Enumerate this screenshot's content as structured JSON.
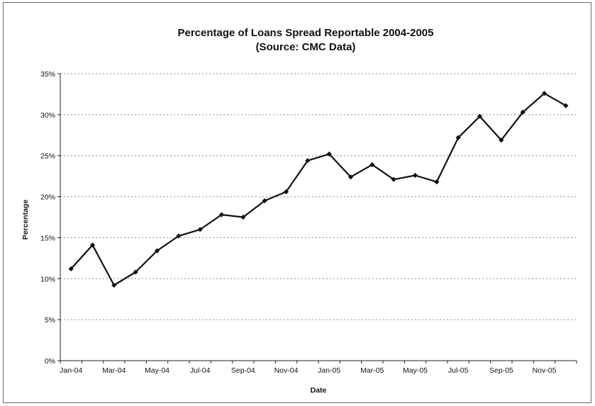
{
  "chart_data": {
    "type": "line",
    "title": "Percentage of Loans Spread Reportable 2004-2005",
    "subtitle": "(Source: CMC Data)",
    "xlabel": "Date",
    "ylabel": "Percentage",
    "x_tick_labels": [
      "Jan-04",
      "Mar-04",
      "May-04",
      "Jul-04",
      "Sep-04",
      "Nov-04",
      "Jan-05",
      "Mar-05",
      "May-05",
      "Jul-05",
      "Sep-05",
      "Nov-05"
    ],
    "y_tick_labels": [
      "0%",
      "5%",
      "10%",
      "15%",
      "20%",
      "25%",
      "30%",
      "35%"
    ],
    "y_ticks": [
      0,
      5,
      10,
      15,
      20,
      25,
      30,
      35
    ],
    "ylim": [
      0,
      35
    ],
    "grid": true,
    "series": [
      {
        "name": "",
        "color": "#111111",
        "x": [
          "Jan-04",
          "Feb-04",
          "Mar-04",
          "Apr-04",
          "May-04",
          "Jun-04",
          "Jul-04",
          "Aug-04",
          "Sep-04",
          "Oct-04",
          "Nov-04",
          "Dec-04",
          "Jan-05",
          "Feb-05",
          "Mar-05",
          "Apr-05",
          "May-05",
          "Jun-05",
          "Jul-05",
          "Aug-05",
          "Sep-05",
          "Oct-05",
          "Nov-05",
          "Dec-05"
        ],
        "values": [
          11.2,
          14.1,
          9.2,
          10.8,
          13.4,
          15.2,
          16.0,
          17.8,
          17.5,
          19.5,
          20.6,
          24.4,
          25.2,
          22.4,
          23.9,
          22.1,
          22.6,
          21.8,
          27.2,
          29.8,
          26.9,
          30.3,
          32.6,
          31.1
        ]
      }
    ]
  }
}
